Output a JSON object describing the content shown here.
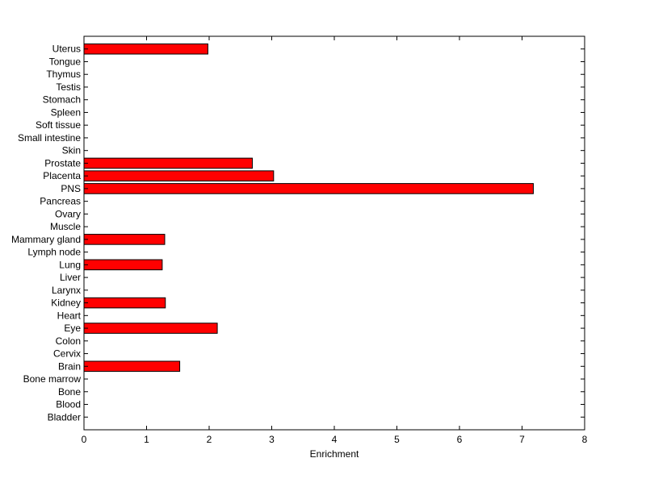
{
  "chart_data": {
    "type": "bar",
    "orientation": "horizontal",
    "categories": [
      "Bladder",
      "Blood",
      "Bone",
      "Bone marrow",
      "Brain",
      "Cervix",
      "Colon",
      "Eye",
      "Heart",
      "Kidney",
      "Larynx",
      "Liver",
      "Lung",
      "Lymph node",
      "Mammary gland",
      "Muscle",
      "Ovary",
      "Pancreas",
      "PNS",
      "Placenta",
      "Prostate",
      "Skin",
      "Small intestine",
      "Soft tissue",
      "Spleen",
      "Stomach",
      "Testis",
      "Thymus",
      "Tongue",
      "Uterus"
    ],
    "values": [
      0,
      0,
      0,
      0,
      1.53,
      0,
      0,
      2.13,
      0,
      1.3,
      0,
      0,
      1.25,
      0,
      1.29,
      0,
      0,
      0,
      7.18,
      3.03,
      2.69,
      0,
      0,
      0,
      0,
      0,
      0,
      0,
      0,
      1.98
    ],
    "xlabel": "Enrichment",
    "ylabel": "",
    "title": "",
    "xlim": [
      0,
      8
    ],
    "xticks": [
      "0",
      "1",
      "2",
      "3",
      "4",
      "5",
      "6",
      "7",
      "8"
    ],
    "grid": false,
    "colors": {
      "bar_fill": "#ff0000",
      "bar_stroke": "#000000"
    }
  }
}
